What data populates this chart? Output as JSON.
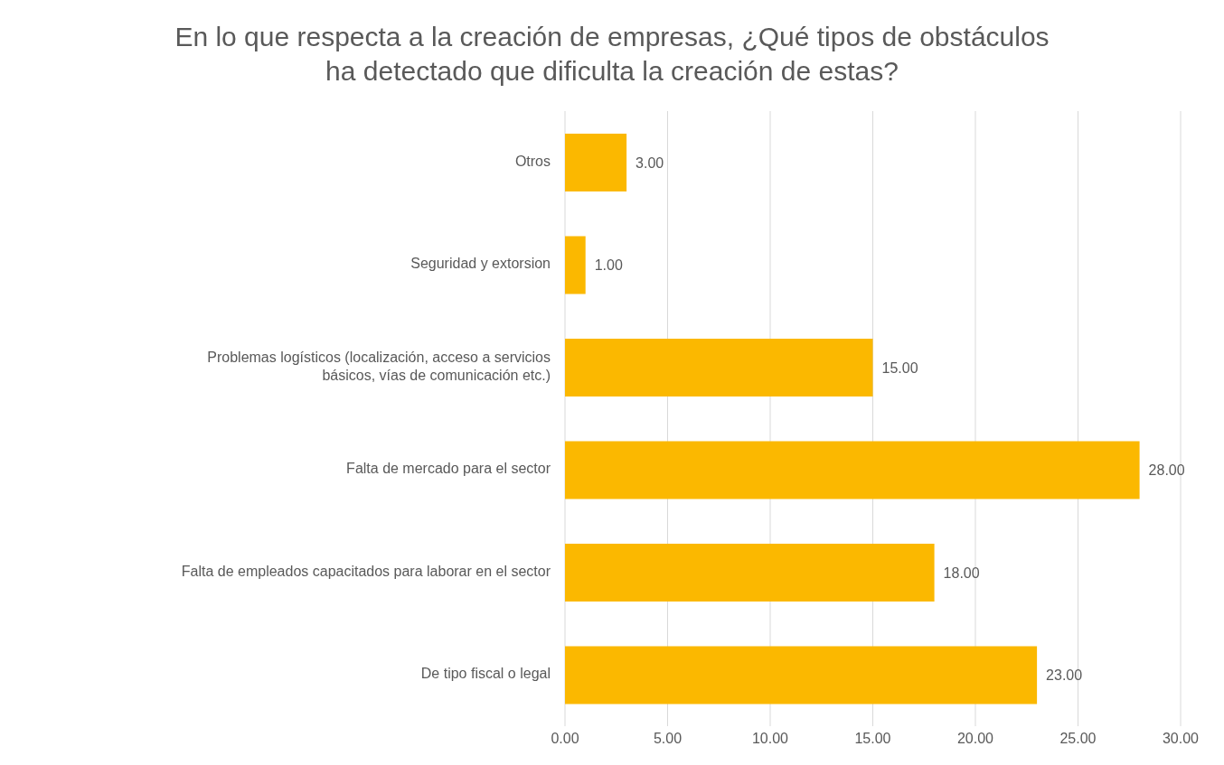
{
  "chart_data": {
    "type": "bar",
    "orientation": "horizontal",
    "title": "En lo que respecta a la creación de empresas, ¿Qué tipos de obstáculos ha detectado que dificulta la creación de estas?",
    "categories": [
      "Otros",
      "Seguridad y extorsion",
      "Problemas logísticos (localización, acceso a servicios básicos, vías de comunicación etc.)",
      "Falta de mercado para el sector",
      "Falta de empleados capacitados para laborar en el sector",
      "De tipo fiscal o legal"
    ],
    "values": [
      3,
      1,
      15,
      28,
      18,
      23
    ],
    "value_labels": [
      "3.00",
      "1.00",
      "15.00",
      "28.00",
      "18.00",
      "23.00"
    ],
    "color": "#fbb800",
    "xlim": [
      0,
      30
    ],
    "xticks": [
      {
        "value": 0,
        "label": "0.00"
      },
      {
        "value": 5,
        "label": "5.00"
      },
      {
        "value": 10,
        "label": "10.00"
      },
      {
        "value": 15,
        "label": "15.00"
      },
      {
        "value": 20,
        "label": "20.00"
      },
      {
        "value": 25,
        "label": "25.00"
      },
      {
        "value": 30,
        "label": "30.00"
      }
    ],
    "grid": "x"
  }
}
